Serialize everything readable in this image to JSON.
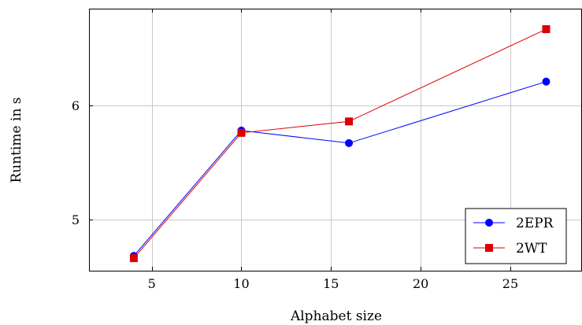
{
  "chart_data": {
    "type": "line",
    "xlabel": "Alphabet size",
    "ylabel": "Runtime in s",
    "x": [
      4,
      10,
      16,
      27
    ],
    "xlim": [
      1.5,
      29
    ],
    "ylim": [
      4.55,
      6.85
    ],
    "xticks": [
      5,
      10,
      15,
      20,
      25
    ],
    "yticks": [
      5,
      6
    ],
    "grid": true,
    "legend_position": "bottom-right",
    "series": [
      {
        "name": "2EPR",
        "color": "#0000ff",
        "marker": "circle",
        "values": [
          4.68,
          5.78,
          5.67,
          6.21
        ]
      },
      {
        "name": "2WT",
        "color": "#dd0000",
        "marker": "square",
        "values": [
          4.66,
          5.76,
          5.86,
          6.67
        ]
      }
    ]
  }
}
